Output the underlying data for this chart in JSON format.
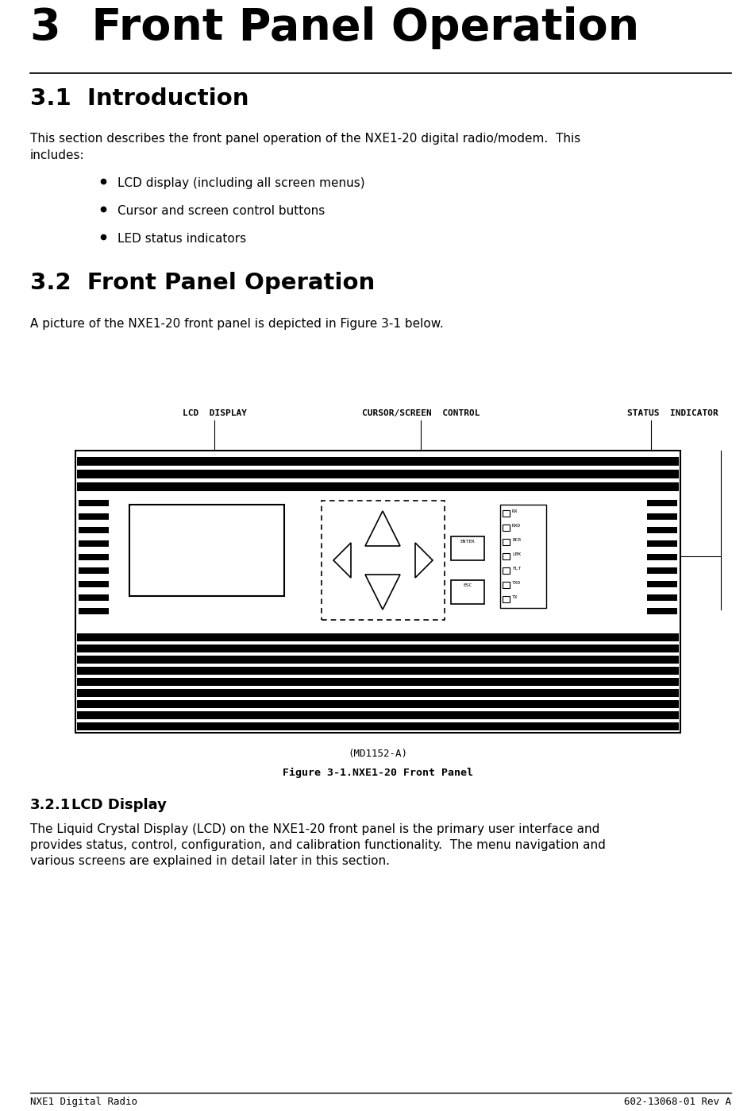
{
  "title": "3  Front Panel Operation",
  "section_31_title": "3.1  Introduction",
  "section_31_body1": "This section describes the front panel operation of the NXE1-20 digital radio/modem.  This",
  "section_31_body2": "includes:",
  "bullets": [
    "LCD display (including all screen menus)",
    "Cursor and screen control buttons",
    "LED status indicators"
  ],
  "section_32_title": "3.2  Front Panel Operation",
  "section_32_body": "A picture of the NXE1-20 front panel is depicted in Figure 3-1 below.",
  "figure_caption": "Figure 3-1.NXE1-20 Front Panel",
  "section_321_title": "3.2.1",
  "section_321_subtitle": "LCD Display",
  "section_321_body1": "The Liquid Crystal Display (LCD) on the NXE1-20 front panel is the primary user interface and",
  "section_321_body2": "provides status, control, configuration, and calibration functionality.  The menu navigation and",
  "section_321_body3": "various screens are explained in detail later in this section.",
  "footer_left": "NXE1 Digital Radio",
  "footer_right": "602-13068-01 Rev A",
  "bg_color": "#ffffff",
  "text_color": "#000000",
  "label_lcd": "LCD  DISPLAY",
  "label_cursor": "CURSOR/SCREEN  CONTROL",
  "label_status": "STATUS  INDICATOR",
  "led_labels": [
    "RX",
    "RXD",
    "BCR",
    "LBK",
    "FLT",
    "TXD",
    "TX"
  ],
  "enter_label": "ENTER",
  "esc_label": "ESC",
  "model_label": "(MD1152-A)"
}
